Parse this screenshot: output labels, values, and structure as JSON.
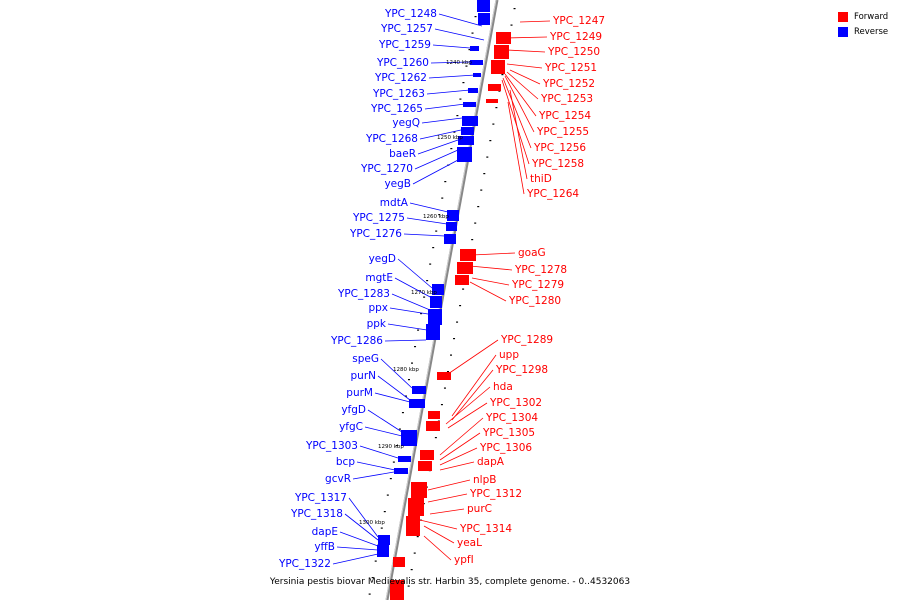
{
  "title": "Yersinia pestis biovar Medievalis str. Harbin 35, complete genome. - 0..4532063",
  "legend": [
    {
      "label": "Forward",
      "color": "#ff0000"
    },
    {
      "label": "Reverse",
      "color": "#0000ff"
    }
  ],
  "colors": {
    "forward": "#ff0000",
    "reverse": "#0000ff",
    "axis": "#888888",
    "tick": "#000000"
  },
  "position_markers": [
    "1240 kbp",
    "1250 kbp",
    "1260 kbp",
    "1270 kbp",
    "1280 kbp",
    "1290 kbp",
    "1300 kbp"
  ],
  "reverse_genes": [
    "YPC_1248",
    "YPC_1257",
    "YPC_1259",
    "YPC_1260",
    "YPC_1262",
    "YPC_1263",
    "YPC_1265",
    "yegQ",
    "YPC_1268",
    "baeR",
    "YPC_1270",
    "yegB",
    "mdtA",
    "YPC_1275",
    "YPC_1276",
    "yegD",
    "mgtE",
    "YPC_1283",
    "ppx",
    "ppk",
    "YPC_1286",
    "speG",
    "purN",
    "purM",
    "yfgD",
    "yfgC",
    "YPC_1303",
    "bcp",
    "gcvR",
    "YPC_1317",
    "YPC_1318",
    "dapE",
    "yffB",
    "YPC_1322"
  ],
  "forward_genes": [
    "YPC_1247",
    "YPC_1249",
    "YPC_1250",
    "YPC_1251",
    "YPC_1252",
    "YPC_1253",
    "YPC_1254",
    "YPC_1255",
    "YPC_1256",
    "YPC_1258",
    "thiD",
    "YPC_1264",
    "goaG",
    "YPC_1278",
    "YPC_1279",
    "YPC_1280",
    "YPC_1289",
    "upp",
    "YPC_1298",
    "hda",
    "YPC_1302",
    "YPC_1304",
    "YPC_1305",
    "YPC_1306",
    "dapA",
    "nlpB",
    "YPC_1312",
    "purC",
    "YPC_1314",
    "yeaL",
    "ypfI"
  ]
}
